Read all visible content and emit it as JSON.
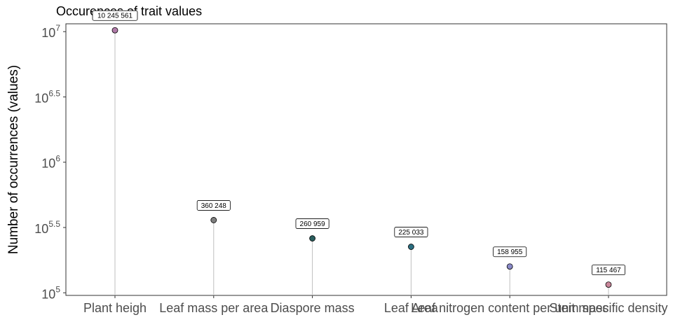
{
  "chart_data": {
    "type": "lollipop",
    "title": "Occurences of trait values",
    "xlabel": "",
    "ylabel": "Number of occurrences (values)",
    "y_scale": "log10",
    "ylim_log10": [
      4.98,
      7.06
    ],
    "y_ticks": [
      {
        "base": "10",
        "exp": "5"
      },
      {
        "base": "10",
        "exp": "5.5"
      },
      {
        "base": "10",
        "exp": "6"
      },
      {
        "base": "10",
        "exp": "6.5"
      },
      {
        "base": "10",
        "exp": "7"
      }
    ],
    "categories": [
      "Plant heigh",
      "Leaf mass per area",
      "Diaspore mass",
      "Leaf Area",
      "Leaf nitrogen content per unit mass",
      "Stem specific density"
    ],
    "values": [
      10245561,
      360248,
      260959,
      225033,
      158955,
      115467
    ],
    "value_labels": [
      "10 245 561",
      "360 248",
      "260 959",
      "225 033",
      "158 955",
      "115 467"
    ],
    "point_colors": [
      "#b07aa8",
      "#7f7f7f",
      "#2a5e5e",
      "#2b6e80",
      "#8a8ac8",
      "#c9869a"
    ],
    "stem_color": "#bfbfbf",
    "grid": false,
    "legend": "none"
  }
}
